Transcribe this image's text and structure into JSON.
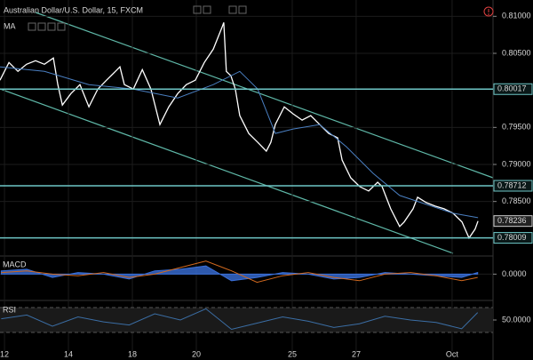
{
  "chart_data": [
    {
      "type": "line",
      "title": "Australian Dollar/U.S. Dollar, 15, FXCM",
      "indicator": "MA",
      "x": [
        -0.14,
        0.14,
        0.42,
        0.69,
        0.97,
        1.25,
        1.53,
        1.67,
        1.81,
        2.08,
        2.36,
        2.64,
        2.92,
        3.19,
        3.47,
        3.61,
        3.75,
        4.03,
        4.31,
        4.58,
        4.86,
        5.14,
        5.42,
        5.69,
        5.97,
        6.25,
        6.53,
        6.81,
        6.86,
        6.94,
        7.08,
        7.22,
        7.36,
        7.64,
        7.92,
        8.19,
        8.33,
        8.47,
        8.75,
        9.03,
        9.31,
        9.58,
        9.86,
        10.14,
        10.42,
        10.56,
        10.83,
        11.11,
        11.39,
        11.67,
        11.81,
        12.08,
        12.36,
        12.5,
        12.78,
        12.92,
        13.19,
        13.47,
        13.75,
        14.03,
        14.31,
        14.53,
        14.72,
        14.81
      ],
      "series": [
        {
          "color": "#ffffff",
          "values": [
            0.80138,
            0.80377,
            0.80257,
            0.80353,
            0.80401,
            0.80353,
            0.80437,
            0.80078,
            0.79802,
            0.79958,
            0.80078,
            0.79778,
            0.80018,
            0.80138,
            0.80257,
            0.80317,
            0.80078,
            0.80018,
            0.80281,
            0.80018,
            0.79539,
            0.79778,
            0.79958,
            0.80078,
            0.80138,
            0.80377,
            0.80557,
            0.80856,
            0.80916,
            0.80257,
            0.80198,
            0.80018,
            0.79659,
            0.79419,
            0.79299,
            0.7918,
            0.79299,
            0.79539,
            0.79778,
            0.79683,
            0.79599,
            0.79659,
            0.79539,
            0.79419,
            0.79359,
            0.7906,
            0.7882,
            0.78701,
            0.78641,
            0.7876,
            0.78701,
            0.78401,
            0.78162,
            0.78222,
            0.78401,
            0.78557,
            0.78485,
            0.78437,
            0.78401,
            0.78341,
            0.78222,
            0.78006,
            0.78126,
            0.78236
          ]
        },
        {
          "name": "MA",
          "color": "#4a7fc1",
          "x": [
            -0.14,
            1.25,
            2.64,
            4.03,
            5.42,
            6.53,
            7.36,
            7.92,
            8.47,
            9.03,
            9.86,
            10.69,
            11.53,
            12.36,
            13.19,
            14.03,
            14.81
          ],
          "values": [
            0.80317,
            0.80257,
            0.80078,
            0.80018,
            0.79898,
            0.80078,
            0.80257,
            0.80018,
            0.79419,
            0.79479,
            0.79539,
            0.7924,
            0.7888,
            0.78581,
            0.78461,
            0.78341,
            0.78281
          ]
        }
      ],
      "levels": [
        0.80017,
        0.78712,
        0.78009
      ],
      "level_color": "#6ec6c6",
      "xlim": [
        -0.14,
        15.28
      ],
      "ylim": [
        0.778,
        0.8122
      ],
      "yticks": [
        {
          "value": 0.81,
          "label": "0.81000"
        },
        {
          "value": 0.805,
          "label": "0.80500"
        },
        {
          "value": 0.795,
          "label": "0.79500"
        },
        {
          "value": 0.79,
          "label": "0.79000"
        },
        {
          "value": 0.785,
          "label": "0.78500"
        }
      ],
      "xticks": [
        {
          "value": 0,
          "label": "12"
        },
        {
          "value": 2,
          "label": "14"
        },
        {
          "value": 4,
          "label": "18"
        },
        {
          "value": 6,
          "label": "20"
        },
        {
          "value": 9,
          "label": "25"
        },
        {
          "value": 11,
          "label": "27"
        },
        {
          "value": 14,
          "label": "Oct"
        }
      ],
      "grid": true
    },
    {
      "type": "line",
      "title": "MACD",
      "x": [
        -0.1,
        0.7,
        1.5,
        2.3,
        3.1,
        3.9,
        4.7,
        5.5,
        6.3,
        7.1,
        7.9,
        8.7,
        9.5,
        10.3,
        11.1,
        11.9,
        12.7,
        13.5,
        14.3,
        14.8
      ],
      "series": [
        {
          "color": "#3a6fd8",
          "fill": true,
          "values": [
            0.0002,
            0.0003,
            -0.0002,
            0.0001,
            0.0,
            -0.0003,
            0.0002,
            0.0003,
            0.0005,
            -0.0004,
            -0.0002,
            0.0001,
            0.0,
            -0.0003,
            -0.0002,
            0.0001,
            0.0,
            -0.0001,
            -0.0002,
            0.0001
          ]
        },
        {
          "color": "#d2691e",
          "values": [
            0.0001,
            0.0002,
            0.0,
            -0.0001,
            0.0001,
            -0.0002,
            0.0,
            0.0004,
            0.0008,
            0.0002,
            -0.0005,
            -0.0001,
            0.0001,
            -0.0002,
            -0.0004,
            0.0,
            0.0001,
            -0.0001,
            -0.0004,
            -0.0002
          ]
        }
      ],
      "ylim": [
        -0.0015,
        0.001
      ],
      "yticks": [
        {
          "value": 0,
          "label": "0.0000"
        }
      ]
    },
    {
      "type": "line",
      "title": "RSI",
      "x": [
        -0.1,
        0.7,
        1.5,
        2.3,
        3.1,
        3.9,
        4.7,
        5.5,
        6.3,
        7.1,
        7.9,
        8.7,
        9.5,
        10.3,
        11.1,
        11.9,
        12.7,
        13.5,
        14.3,
        14.8
      ],
      "series": [
        {
          "color": "#3b6ea5",
          "values": [
            52,
            58,
            40,
            55,
            47,
            42,
            60,
            50,
            68,
            35,
            45,
            55,
            48,
            38,
            44,
            56,
            50,
            46,
            36,
            62
          ]
        }
      ],
      "bands": [
        30,
        70
      ],
      "ylim": [
        0,
        78.6
      ],
      "yticks": [
        {
          "value": 50,
          "label": "50.0000"
        }
      ]
    }
  ]
}
